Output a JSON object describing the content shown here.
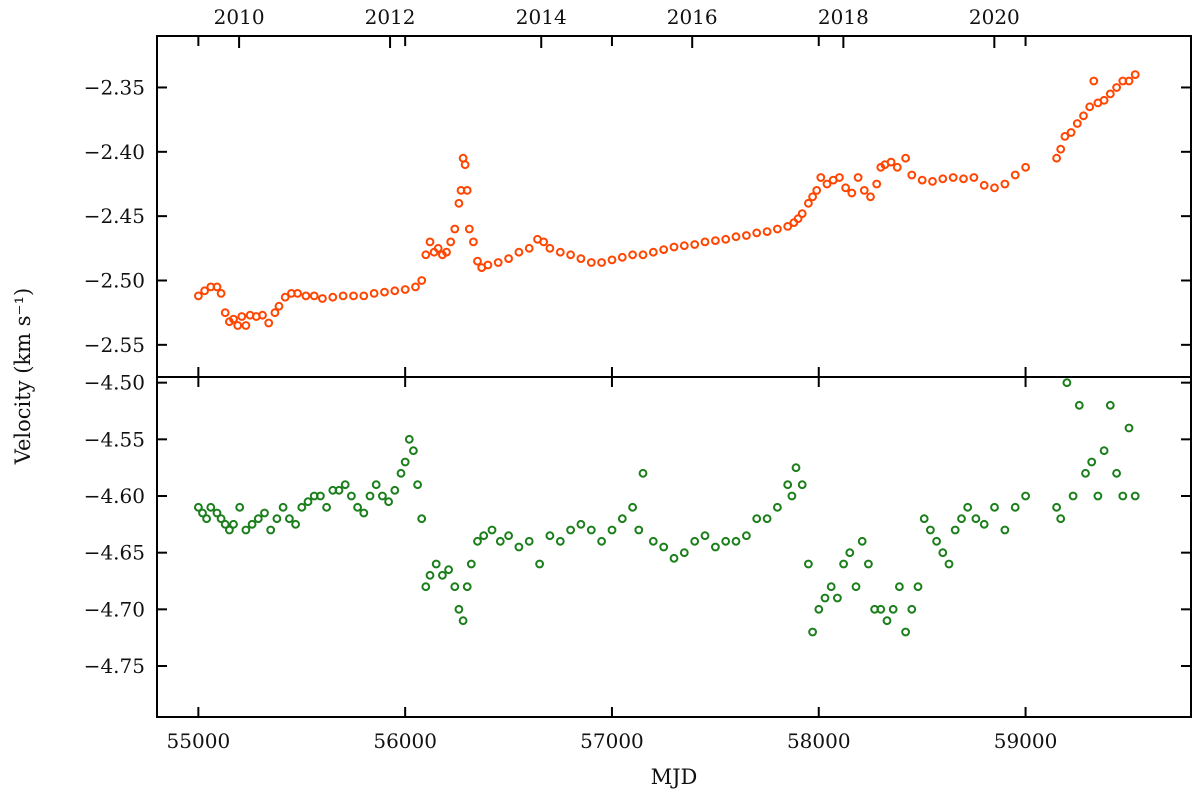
{
  "chart_data": [
    {
      "type": "scatter",
      "panel": "top",
      "xlabel": "MJD",
      "ylabel": "Velocity (km s⁻¹)",
      "xlim": [
        54800,
        59800
      ],
      "ylim": [
        -2.575,
        -2.31
      ],
      "yticks": [
        -2.35,
        -2.4,
        -2.45,
        -2.5,
        -2.55
      ],
      "ytick_labels": [
        "−2.35",
        "−2.40",
        "−2.45",
        "−2.50",
        "−2.55"
      ],
      "top_axis_year_labels": [
        "2010",
        "2012",
        "2014",
        "2016",
        "2018",
        "2020"
      ],
      "grid": false,
      "marker": "open-circle",
      "color": "#ff4500",
      "series": [
        {
          "x": [
            55000,
            55030,
            55060,
            55090,
            55110,
            55130,
            55150,
            55170,
            55190,
            55210,
            55230,
            55250,
            55280,
            55310,
            55340,
            55370,
            55390,
            55420,
            55450,
            55480,
            55520,
            55560,
            55600,
            55650,
            55700,
            55750,
            55800,
            55850,
            55900,
            55950,
            56000,
            56050,
            56080,
            56100,
            56120,
            56140,
            56160,
            56180,
            56200,
            56220,
            56240,
            56260,
            56270,
            56280,
            56290,
            56300,
            56310,
            56330,
            56350,
            56370,
            56400,
            56450,
            56500,
            56550,
            56600,
            56640,
            56670,
            56700,
            56750,
            56800,
            56850,
            56900,
            56950,
            57000,
            57050,
            57100,
            57150,
            57200,
            57250,
            57300,
            57350,
            57400,
            57450,
            57500,
            57550,
            57600,
            57650,
            57700,
            57750,
            57800,
            57850,
            57880,
            57900,
            57920,
            57950,
            57970,
            57990,
            58010,
            58040,
            58070,
            58100,
            58130,
            58160,
            58190,
            58220,
            58250,
            58280,
            58300,
            58320,
            58350,
            58380,
            58420,
            58450,
            58500,
            58550,
            58600,
            58650,
            58700,
            58750,
            58800,
            58850,
            58900,
            58950,
            59000,
            59150,
            59170,
            59190,
            59220,
            59250,
            59280,
            59310,
            59330,
            59350,
            59380,
            59410,
            59440,
            59470,
            59500,
            59530
          ],
          "y": [
            -2.512,
            -2.508,
            -2.505,
            -2.505,
            -2.51,
            -2.525,
            -2.532,
            -2.53,
            -2.535,
            -2.528,
            -2.535,
            -2.527,
            -2.528,
            -2.527,
            -2.533,
            -2.525,
            -2.52,
            -2.513,
            -2.51,
            -2.51,
            -2.512,
            -2.512,
            -2.514,
            -2.513,
            -2.512,
            -2.512,
            -2.512,
            -2.51,
            -2.509,
            -2.508,
            -2.507,
            -2.505,
            -2.5,
            -2.48,
            -2.47,
            -2.478,
            -2.475,
            -2.48,
            -2.478,
            -2.47,
            -2.46,
            -2.44,
            -2.43,
            -2.405,
            -2.41,
            -2.43,
            -2.46,
            -2.47,
            -2.485,
            -2.49,
            -2.488,
            -2.486,
            -2.483,
            -2.478,
            -2.475,
            -2.468,
            -2.47,
            -2.475,
            -2.478,
            -2.48,
            -2.483,
            -2.486,
            -2.486,
            -2.484,
            -2.482,
            -2.48,
            -2.48,
            -2.478,
            -2.476,
            -2.474,
            -2.473,
            -2.472,
            -2.47,
            -2.469,
            -2.468,
            -2.466,
            -2.465,
            -2.463,
            -2.462,
            -2.46,
            -2.458,
            -2.455,
            -2.452,
            -2.448,
            -2.44,
            -2.435,
            -2.43,
            -2.42,
            -2.425,
            -2.422,
            -2.42,
            -2.428,
            -2.432,
            -2.42,
            -2.43,
            -2.435,
            -2.425,
            -2.412,
            -2.41,
            -2.408,
            -2.412,
            -2.405,
            -2.418,
            -2.422,
            -2.423,
            -2.421,
            -2.42,
            -2.421,
            -2.42,
            -2.426,
            -2.428,
            -2.425,
            -2.418,
            -2.412,
            -2.405,
            -2.398,
            -2.388,
            -2.385,
            -2.378,
            -2.372,
            -2.365,
            -2.345,
            -2.362,
            -2.36,
            -2.355,
            -2.35,
            -2.345,
            -2.345,
            -2.34
          ]
        }
      ]
    },
    {
      "type": "scatter",
      "panel": "bottom",
      "xlabel": "MJD",
      "ylabel": "Velocity (km s⁻¹)",
      "xlim": [
        54800,
        59800
      ],
      "ylim": [
        -4.795,
        -4.495
      ],
      "yticks": [
        -4.5,
        -4.55,
        -4.6,
        -4.65,
        -4.7,
        -4.75
      ],
      "ytick_labels": [
        "−4.50",
        "−4.55",
        "−4.60",
        "−4.65",
        "−4.70",
        "−4.75"
      ],
      "xticks": [
        55000,
        56000,
        57000,
        58000,
        59000
      ],
      "xtick_labels": [
        "55000",
        "56000",
        "57000",
        "58000",
        "59000"
      ],
      "grid": false,
      "marker": "open-circle",
      "color": "#1a7f1a",
      "series": [
        {
          "x": [
            55000,
            55020,
            55040,
            55060,
            55090,
            55110,
            55130,
            55150,
            55170,
            55200,
            55230,
            55260,
            55290,
            55320,
            55350,
            55380,
            55410,
            55440,
            55470,
            55500,
            55530,
            55560,
            55590,
            55620,
            55650,
            55680,
            55710,
            55740,
            55770,
            55800,
            55830,
            55860,
            55890,
            55920,
            55950,
            55980,
            56000,
            56020,
            56040,
            56060,
            56080,
            56100,
            56120,
            56150,
            56180,
            56210,
            56240,
            56260,
            56280,
            56300,
            56320,
            56350,
            56380,
            56420,
            56460,
            56500,
            56550,
            56600,
            56650,
            56700,
            56750,
            56800,
            56850,
            56900,
            56950,
            57000,
            57050,
            57100,
            57130,
            57150,
            57200,
            57250,
            57300,
            57350,
            57400,
            57450,
            57500,
            57550,
            57600,
            57650,
            57700,
            57750,
            57800,
            57850,
            57870,
            57890,
            57920,
            57950,
            57970,
            58000,
            58030,
            58060,
            58090,
            58120,
            58150,
            58180,
            58210,
            58240,
            58270,
            58300,
            58330,
            58360,
            58390,
            58420,
            58450,
            58480,
            58510,
            58540,
            58570,
            58600,
            58630,
            58660,
            58690,
            58720,
            58760,
            58800,
            58850,
            58900,
            58950,
            59000,
            59150,
            59170,
            59200,
            59230,
            59260,
            59290,
            59320,
            59350,
            59380,
            59410,
            59440,
            59470,
            59500,
            59530
          ],
          "y": [
            -4.61,
            -4.615,
            -4.62,
            -4.61,
            -4.615,
            -4.62,
            -4.625,
            -4.63,
            -4.625,
            -4.61,
            -4.63,
            -4.625,
            -4.62,
            -4.615,
            -4.63,
            -4.62,
            -4.61,
            -4.62,
            -4.625,
            -4.61,
            -4.605,
            -4.6,
            -4.6,
            -4.61,
            -4.595,
            -4.595,
            -4.59,
            -4.6,
            -4.61,
            -4.615,
            -4.6,
            -4.59,
            -4.6,
            -4.605,
            -4.595,
            -4.58,
            -4.57,
            -4.55,
            -4.56,
            -4.59,
            -4.62,
            -4.68,
            -4.67,
            -4.66,
            -4.67,
            -4.665,
            -4.68,
            -4.7,
            -4.71,
            -4.68,
            -4.66,
            -4.64,
            -4.635,
            -4.63,
            -4.64,
            -4.635,
            -4.645,
            -4.64,
            -4.66,
            -4.635,
            -4.64,
            -4.63,
            -4.625,
            -4.63,
            -4.64,
            -4.63,
            -4.62,
            -4.61,
            -4.63,
            -4.58,
            -4.64,
            -4.645,
            -4.655,
            -4.65,
            -4.64,
            -4.635,
            -4.645,
            -4.64,
            -4.64,
            -4.635,
            -4.62,
            -4.62,
            -4.61,
            -4.59,
            -4.6,
            -4.575,
            -4.59,
            -4.66,
            -4.72,
            -4.7,
            -4.69,
            -4.68,
            -4.69,
            -4.66,
            -4.65,
            -4.68,
            -4.64,
            -4.66,
            -4.7,
            -4.7,
            -4.71,
            -4.7,
            -4.68,
            -4.72,
            -4.7,
            -4.68,
            -4.62,
            -4.63,
            -4.64,
            -4.65,
            -4.66,
            -4.63,
            -4.62,
            -4.61,
            -4.62,
            -4.625,
            -4.61,
            -4.63,
            -4.61,
            -4.6,
            -4.61,
            -4.62,
            -4.5,
            -4.6,
            -4.52,
            -4.58,
            -4.57,
            -4.6,
            -4.56,
            -4.52,
            -4.58,
            -4.6,
            -4.54,
            -4.6
          ]
        }
      ]
    }
  ]
}
